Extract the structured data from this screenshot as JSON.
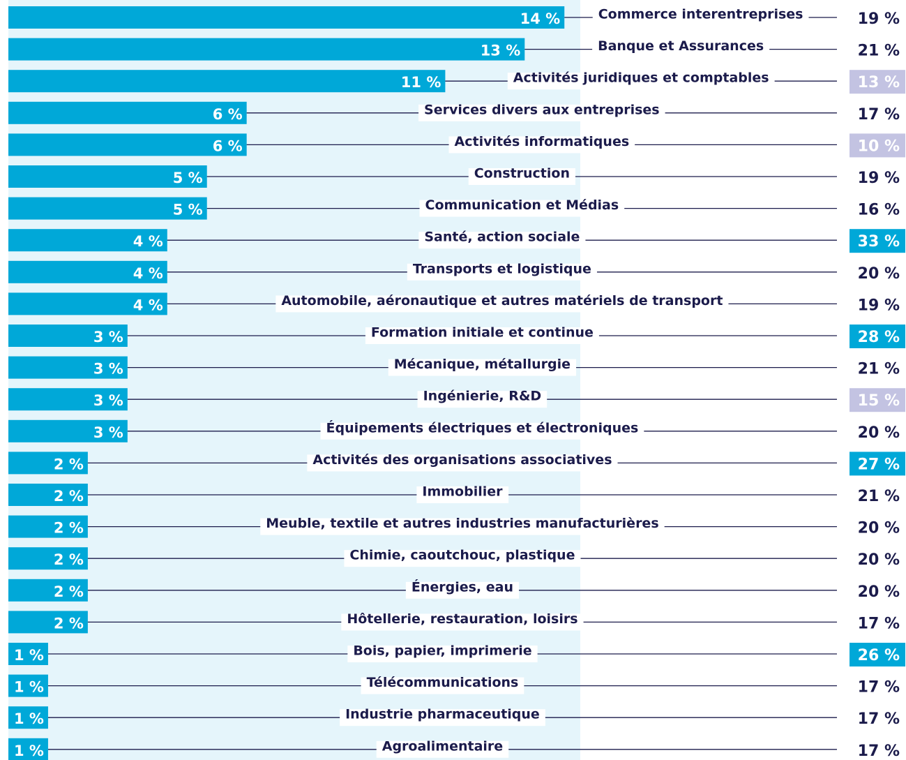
{
  "chart_data": {
    "type": "bar",
    "categories": [
      "Commerce interentreprises",
      "Banque et Assurances",
      "Activités juridiques et comptables",
      "Services divers aux entreprises",
      "Activités informatiques",
      "Construction",
      "Communication et Médias",
      "Santé, action sociale",
      "Transports et logistique",
      "Automobile, aéronautique et autres matériels de transport",
      "Formation initiale et continue",
      "Mécanique, métallurgie",
      "Ingénierie, R&D",
      "Équipements électriques et électroniques",
      "Activités des organisations associatives",
      "Immobilier",
      "Meuble, textile et autres industries manufacturières",
      "Chimie, caoutchouc, plastique",
      "Énergies, eau",
      "Hôtellerie, restauration, loisirs",
      "Bois, papier, imprimerie",
      "Télécommunications",
      "Industrie pharmaceutique",
      "Agroalimentaire"
    ],
    "values": [
      14,
      13,
      11,
      6,
      6,
      5,
      5,
      4,
      4,
      4,
      3,
      3,
      3,
      3,
      2,
      2,
      2,
      2,
      2,
      2,
      1,
      1,
      1,
      1
    ],
    "value_labels": [
      "14 %",
      "13 %",
      "11 %",
      "6 %",
      "6 %",
      "5 %",
      "5 %",
      "4 %",
      "4 %",
      "4 %",
      "3 %",
      "3 %",
      "3 %",
      "3 %",
      "2 %",
      "2 %",
      "2 %",
      "2 %",
      "2 %",
      "2 %",
      "1 %",
      "1 %",
      "1 %",
      "1 %"
    ],
    "color": "#00a8d8",
    "xlim": [
      0,
      14.4
    ],
    "share": [
      19,
      21,
      13,
      17,
      10,
      19,
      16,
      33,
      20,
      19,
      28,
      21,
      15,
      20,
      27,
      21,
      20,
      20,
      20,
      17,
      26,
      17,
      17,
      17
    ],
    "share_labels": [
      "19 %",
      "21 %",
      "13 %",
      "17 %",
      "10 %",
      "19 %",
      "16 %",
      "33 %",
      "20 %",
      "19 %",
      "28 %",
      "21 %",
      "15 %",
      "20 %",
      "27 %",
      "21 %",
      "20 %",
      "20 %",
      "20 %",
      "17 %",
      "26 %",
      "17 %",
      "17 %",
      "17 %"
    ],
    "share_backgrounds": [
      null,
      null,
      "#c3c3e2",
      null,
      "#c3c3e2",
      null,
      null,
      "#00a8d8",
      null,
      null,
      "#00a8d8",
      null,
      "#c3c3e2",
      null,
      "#00a8d8",
      null,
      null,
      null,
      null,
      null,
      "#00a8d8",
      null,
      null,
      null
    ]
  }
}
